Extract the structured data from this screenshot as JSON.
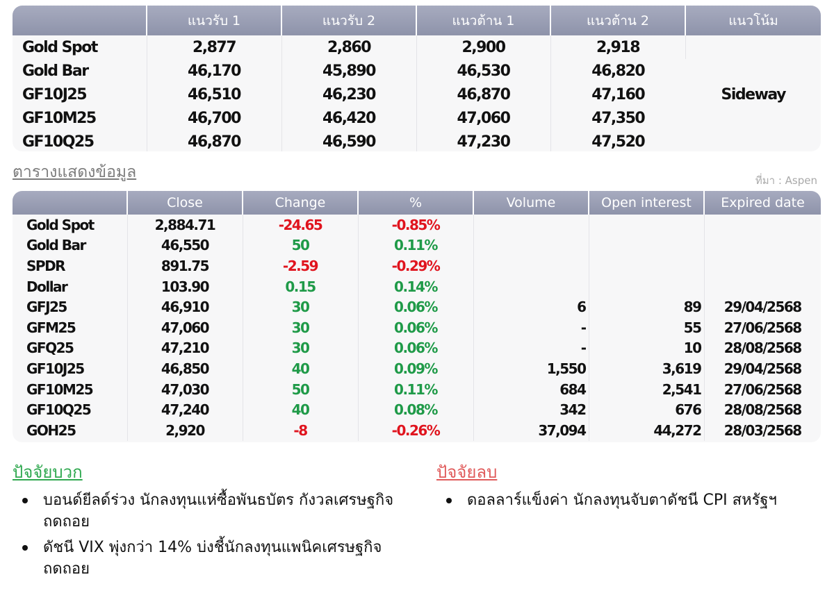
{
  "levels": {
    "headers": [
      "",
      "แนวรับ 1",
      "แนวรับ 2",
      "แนวต้าน 1",
      "แนวต้าน 2",
      "แนวโน้ม"
    ],
    "trend": "Sideway",
    "rows": [
      {
        "name": "Gold Spot",
        "s1": "2,877",
        "s2": "2,860",
        "r1": "2,900",
        "r2": "2,918"
      },
      {
        "name": "Gold Bar",
        "s1": "46,170",
        "s2": "45,890",
        "r1": "46,530",
        "r2": "46,820"
      },
      {
        "name": "GF10J25",
        "s1": "46,510",
        "s2": "46,230",
        "r1": "46,870",
        "r2": "47,160"
      },
      {
        "name": "GF10M25",
        "s1": "46,700",
        "s2": "46,420",
        "r1": "47,060",
        "r2": "47,350"
      },
      {
        "name": "GF10Q25",
        "s1": "46,870",
        "s2": "46,590",
        "r1": "47,230",
        "r2": "47,520"
      }
    ]
  },
  "caption": "ตารางแสดงข้อมูล",
  "source": "ที่มา : Aspen",
  "data_table": {
    "headers": [
      "",
      "Close",
      "Change",
      "%",
      "Volume",
      "Open interest",
      "Expired date"
    ],
    "rows": [
      {
        "name": "Gold Spot",
        "close": "2,884.71",
        "change": "-24.65",
        "pct": "-0.85%",
        "dir": "dn",
        "volume": "",
        "oi": "",
        "expiry": ""
      },
      {
        "name": "Gold Bar",
        "close": "46,550",
        "change": "50",
        "pct": "0.11%",
        "dir": "up",
        "volume": "",
        "oi": "",
        "expiry": ""
      },
      {
        "name": "SPDR",
        "close": "891.75",
        "change": "-2.59",
        "pct": "-0.29%",
        "dir": "dn",
        "volume": "",
        "oi": "",
        "expiry": ""
      },
      {
        "name": "Dollar",
        "close": "103.90",
        "change": "0.15",
        "pct": "0.14%",
        "dir": "up",
        "volume": "",
        "oi": "",
        "expiry": ""
      },
      {
        "name": "GFJ25",
        "close": "46,910",
        "change": "30",
        "pct": "0.06%",
        "dir": "up",
        "volume": "6",
        "oi": "89",
        "expiry": "29/04/2568"
      },
      {
        "name": "GFM25",
        "close": "47,060",
        "change": "30",
        "pct": "0.06%",
        "dir": "up",
        "volume": "-",
        "oi": "55",
        "expiry": "27/06/2568"
      },
      {
        "name": "GFQ25",
        "close": "47,210",
        "change": "30",
        "pct": "0.06%",
        "dir": "up",
        "volume": "-",
        "oi": "10",
        "expiry": "28/08/2568"
      },
      {
        "name": "GF10J25",
        "close": "46,850",
        "change": "40",
        "pct": "0.09%",
        "dir": "up",
        "volume": "1,550",
        "oi": "3,619",
        "expiry": "29/04/2568"
      },
      {
        "name": "GF10M25",
        "close": "47,030",
        "change": "50",
        "pct": "0.11%",
        "dir": "up",
        "volume": "684",
        "oi": "2,541",
        "expiry": "27/06/2568"
      },
      {
        "name": "GF10Q25",
        "close": "47,240",
        "change": "40",
        "pct": "0.08%",
        "dir": "up",
        "volume": "342",
        "oi": "676",
        "expiry": "28/08/2568"
      },
      {
        "name": "GOH25",
        "close": "2,920",
        "change": "-8",
        "pct": "-0.26%",
        "dir": "dn",
        "volume": "37,094",
        "oi": "44,272",
        "expiry": "28/03/2568"
      }
    ]
  },
  "positive": {
    "title": "ปัจจัยบวก",
    "items": [
      "บอนด์ยีลด์ร่วง นักลงทุนแห่ซื้อพันธบัตร กังวลเศรษฐกิจถดถอย",
      "ดัชนี VIX พุ่งกว่า 14% บ่งชี้นักลงทุนแพนิคเศรษฐกิจถดถอย"
    ]
  },
  "negative": {
    "title": "ปัจจัยลบ",
    "items": [
      "ดอลลาร์แข็งค่า นักลงทุนจับตาดัชนี CPI สหรัฐฯ"
    ]
  },
  "colors": {
    "header_bg": "#9a9fb5",
    "up": "#1f9a48",
    "down": "#e0141e"
  }
}
